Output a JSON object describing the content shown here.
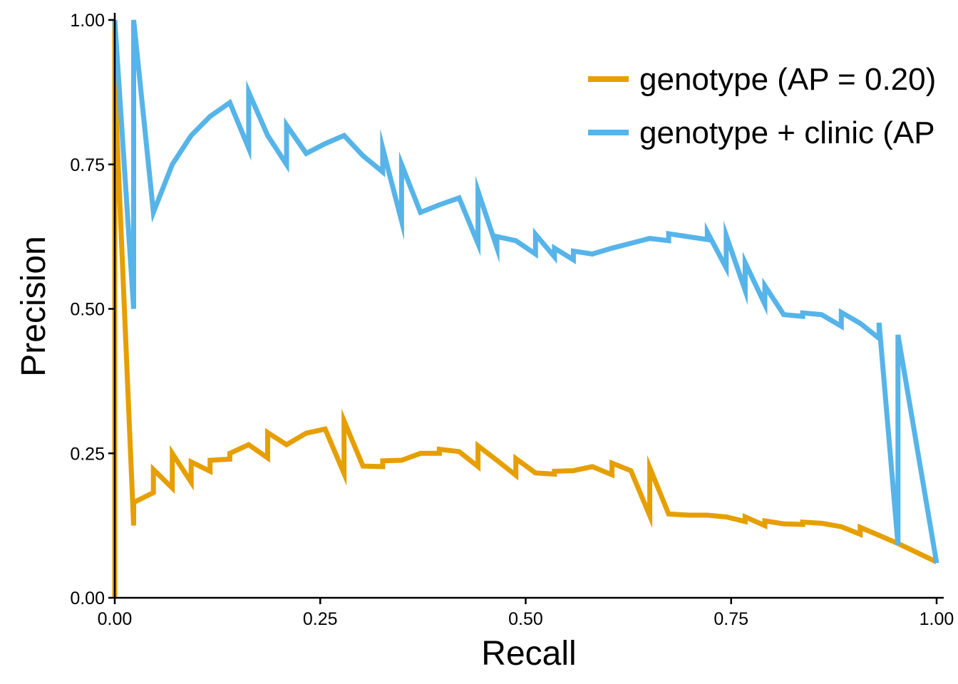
{
  "chart_data": {
    "type": "line",
    "xlabel": "Recall",
    "ylabel": "Precision",
    "xlim": [
      0,
      1
    ],
    "ylim": [
      0,
      1
    ],
    "x_ticks": [
      "0.00",
      "0.25",
      "0.50",
      "0.75",
      "1.00"
    ],
    "y_ticks": [
      "0.00",
      "0.25",
      "0.50",
      "0.75",
      "1.00"
    ],
    "grid": false,
    "legend_position": "top-right",
    "series": [
      {
        "name": "genotype (AP = 0.20)",
        "color": "#E69F00",
        "points": [
          [
            0.0,
            1.0
          ],
          [
            0.0,
            0.0
          ],
          [
            0.0,
            0.89
          ],
          [
            0.023,
            0.125
          ],
          [
            0.023,
            0.165
          ],
          [
            0.047,
            0.182
          ],
          [
            0.047,
            0.222
          ],
          [
            0.07,
            0.19
          ],
          [
            0.07,
            0.25
          ],
          [
            0.093,
            0.2
          ],
          [
            0.093,
            0.235
          ],
          [
            0.116,
            0.219
          ],
          [
            0.116,
            0.238
          ],
          [
            0.14,
            0.24
          ],
          [
            0.14,
            0.25
          ],
          [
            0.163,
            0.265
          ],
          [
            0.186,
            0.242
          ],
          [
            0.186,
            0.286
          ],
          [
            0.209,
            0.265
          ],
          [
            0.233,
            0.285
          ],
          [
            0.256,
            0.292
          ],
          [
            0.279,
            0.215
          ],
          [
            0.279,
            0.306
          ],
          [
            0.302,
            0.228
          ],
          [
            0.326,
            0.227
          ],
          [
            0.326,
            0.237
          ],
          [
            0.349,
            0.238
          ],
          [
            0.372,
            0.25
          ],
          [
            0.395,
            0.25
          ],
          [
            0.395,
            0.257
          ],
          [
            0.419,
            0.253
          ],
          [
            0.442,
            0.227
          ],
          [
            0.442,
            0.263
          ],
          [
            0.465,
            0.238
          ],
          [
            0.488,
            0.212
          ],
          [
            0.488,
            0.241
          ],
          [
            0.512,
            0.216
          ],
          [
            0.535,
            0.214
          ],
          [
            0.535,
            0.219
          ],
          [
            0.558,
            0.22
          ],
          [
            0.581,
            0.227
          ],
          [
            0.605,
            0.213
          ],
          [
            0.605,
            0.233
          ],
          [
            0.628,
            0.22
          ],
          [
            0.651,
            0.142
          ],
          [
            0.651,
            0.225
          ],
          [
            0.674,
            0.145
          ],
          [
            0.698,
            0.143
          ],
          [
            0.721,
            0.143
          ],
          [
            0.744,
            0.14
          ],
          [
            0.767,
            0.132
          ],
          [
            0.767,
            0.14
          ],
          [
            0.791,
            0.125
          ],
          [
            0.791,
            0.133
          ],
          [
            0.814,
            0.128
          ],
          [
            0.837,
            0.127
          ],
          [
            0.837,
            0.131
          ],
          [
            0.86,
            0.129
          ],
          [
            0.884,
            0.123
          ],
          [
            0.907,
            0.11
          ],
          [
            0.907,
            0.122
          ],
          [
            0.93,
            0.108
          ],
          [
            0.953,
            0.094
          ],
          [
            1.0,
            0.062
          ]
        ]
      },
      {
        "name": "genotype + clinic (AP",
        "color": "#56B4E9",
        "points": [
          [
            0.0,
            1.0
          ],
          [
            0.023,
            0.5
          ],
          [
            0.023,
            1.0
          ],
          [
            0.047,
            0.667
          ],
          [
            0.07,
            0.75
          ],
          [
            0.093,
            0.8
          ],
          [
            0.116,
            0.833
          ],
          [
            0.14,
            0.857
          ],
          [
            0.163,
            0.778
          ],
          [
            0.163,
            0.875
          ],
          [
            0.186,
            0.8
          ],
          [
            0.209,
            0.75
          ],
          [
            0.209,
            0.818
          ],
          [
            0.233,
            0.769
          ],
          [
            0.256,
            0.786
          ],
          [
            0.279,
            0.8
          ],
          [
            0.302,
            0.765
          ],
          [
            0.326,
            0.737
          ],
          [
            0.326,
            0.778
          ],
          [
            0.349,
            0.652
          ],
          [
            0.349,
            0.75
          ],
          [
            0.372,
            0.667
          ],
          [
            0.395,
            0.68
          ],
          [
            0.419,
            0.692
          ],
          [
            0.442,
            0.613
          ],
          [
            0.442,
            0.704
          ],
          [
            0.465,
            0.606
          ],
          [
            0.465,
            0.625
          ],
          [
            0.488,
            0.618
          ],
          [
            0.512,
            0.595
          ],
          [
            0.512,
            0.629
          ],
          [
            0.535,
            0.59
          ],
          [
            0.535,
            0.605
          ],
          [
            0.558,
            0.585
          ],
          [
            0.558,
            0.6
          ],
          [
            0.581,
            0.595
          ],
          [
            0.605,
            0.605
          ],
          [
            0.651,
            0.622
          ],
          [
            0.674,
            0.618
          ],
          [
            0.674,
            0.63
          ],
          [
            0.721,
            0.62
          ],
          [
            0.721,
            0.633
          ],
          [
            0.744,
            0.571
          ],
          [
            0.744,
            0.627
          ],
          [
            0.767,
            0.532
          ],
          [
            0.767,
            0.58
          ],
          [
            0.791,
            0.508
          ],
          [
            0.791,
            0.54
          ],
          [
            0.814,
            0.49
          ],
          [
            0.837,
            0.487
          ],
          [
            0.837,
            0.493
          ],
          [
            0.86,
            0.49
          ],
          [
            0.884,
            0.47
          ],
          [
            0.884,
            0.494
          ],
          [
            0.907,
            0.475
          ],
          [
            0.93,
            0.449
          ],
          [
            0.93,
            0.476
          ],
          [
            0.953,
            0.092
          ],
          [
            0.953,
            0.455
          ],
          [
            1.0,
            0.06
          ]
        ]
      }
    ]
  }
}
